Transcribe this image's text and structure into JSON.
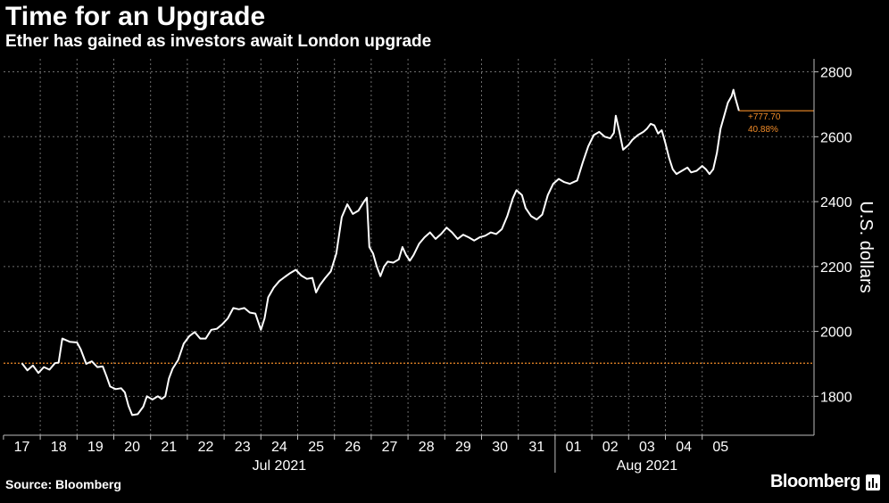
{
  "header": {
    "title": "Time for an Upgrade",
    "subtitle": "Ether has gained as investors await London upgrade"
  },
  "footer": {
    "source": "Source: Bloomberg",
    "brand": "Bloomberg",
    "brand_icon": "bar-chart-icon"
  },
  "chart_data": {
    "type": "line",
    "ylabel": "U.S. dollars",
    "ylim": [
      1680,
      2840
    ],
    "yticks": [
      1800,
      2000,
      2200,
      2400,
      2600,
      2800
    ],
    "x_days": [
      "17",
      "18",
      "19",
      "20",
      "21",
      "22",
      "23",
      "24",
      "25",
      "26",
      "27",
      "28",
      "29",
      "30",
      "31",
      "01",
      "02",
      "03",
      "04",
      "05"
    ],
    "month_labels": [
      {
        "label": "Jul 2021",
        "center_day": "24"
      },
      {
        "label": "Aug 2021",
        "center_day": "03"
      }
    ],
    "reference_level": 1902,
    "reference_color": "#f28c28",
    "line_color": "#ffffff",
    "annotation": {
      "change": "+777.70",
      "percent": "40.88%",
      "last_value": 2680
    },
    "series": [
      {
        "values": [
          [
            0.0,
            1902
          ],
          [
            0.15,
            1880
          ],
          [
            0.3,
            1895
          ],
          [
            0.45,
            1872
          ],
          [
            0.6,
            1890
          ],
          [
            0.75,
            1882
          ],
          [
            0.9,
            1902
          ],
          [
            1.0,
            1904
          ],
          [
            1.1,
            1978
          ],
          [
            1.3,
            1968
          ],
          [
            1.5,
            1966
          ],
          [
            1.6,
            1945
          ],
          [
            1.75,
            1900
          ],
          [
            1.9,
            1908
          ],
          [
            2.05,
            1890
          ],
          [
            2.2,
            1892
          ],
          [
            2.3,
            1862
          ],
          [
            2.4,
            1830
          ],
          [
            2.55,
            1822
          ],
          [
            2.7,
            1825
          ],
          [
            2.8,
            1812
          ],
          [
            2.9,
            1770
          ],
          [
            3.0,
            1742
          ],
          [
            3.15,
            1745
          ],
          [
            3.3,
            1768
          ],
          [
            3.4,
            1800
          ],
          [
            3.55,
            1790
          ],
          [
            3.7,
            1800
          ],
          [
            3.8,
            1792
          ],
          [
            3.9,
            1800
          ],
          [
            4.0,
            1855
          ],
          [
            4.1,
            1885
          ],
          [
            4.25,
            1912
          ],
          [
            4.4,
            1962
          ],
          [
            4.55,
            1985
          ],
          [
            4.7,
            1998
          ],
          [
            4.85,
            1978
          ],
          [
            5.0,
            1978
          ],
          [
            5.15,
            2005
          ],
          [
            5.3,
            2008
          ],
          [
            5.45,
            2022
          ],
          [
            5.6,
            2040
          ],
          [
            5.75,
            2072
          ],
          [
            5.9,
            2068
          ],
          [
            6.05,
            2072
          ],
          [
            6.2,
            2058
          ],
          [
            6.35,
            2055
          ],
          [
            6.5,
            2005
          ],
          [
            6.6,
            2040
          ],
          [
            6.7,
            2105
          ],
          [
            6.85,
            2135
          ],
          [
            7.0,
            2155
          ],
          [
            7.15,
            2168
          ],
          [
            7.3,
            2180
          ],
          [
            7.45,
            2190
          ],
          [
            7.6,
            2172
          ],
          [
            7.75,
            2162
          ],
          [
            7.9,
            2165
          ],
          [
            8.0,
            2120
          ],
          [
            8.1,
            2142
          ],
          [
            8.25,
            2165
          ],
          [
            8.4,
            2185
          ],
          [
            8.55,
            2240
          ],
          [
            8.7,
            2352
          ],
          [
            8.85,
            2392
          ],
          [
            9.0,
            2362
          ],
          [
            9.15,
            2372
          ],
          [
            9.3,
            2400
          ],
          [
            9.38,
            2412
          ],
          [
            9.45,
            2260
          ],
          [
            9.55,
            2240
          ],
          [
            9.65,
            2200
          ],
          [
            9.75,
            2170
          ],
          [
            9.85,
            2200
          ],
          [
            9.95,
            2215
          ],
          [
            10.1,
            2212
          ],
          [
            10.25,
            2222
          ],
          [
            10.35,
            2260
          ],
          [
            10.45,
            2235
          ],
          [
            10.55,
            2218
          ],
          [
            10.65,
            2235
          ],
          [
            10.8,
            2270
          ],
          [
            10.95,
            2290
          ],
          [
            11.1,
            2305
          ],
          [
            11.25,
            2285
          ],
          [
            11.4,
            2300
          ],
          [
            11.55,
            2320
          ],
          [
            11.7,
            2305
          ],
          [
            11.85,
            2285
          ],
          [
            12.0,
            2298
          ],
          [
            12.15,
            2290
          ],
          [
            12.3,
            2280
          ],
          [
            12.45,
            2290
          ],
          [
            12.6,
            2295
          ],
          [
            12.75,
            2305
          ],
          [
            12.9,
            2300
          ],
          [
            13.05,
            2315
          ],
          [
            13.2,
            2355
          ],
          [
            13.35,
            2410
          ],
          [
            13.45,
            2435
          ],
          [
            13.6,
            2420
          ],
          [
            13.7,
            2380
          ],
          [
            13.85,
            2355
          ],
          [
            14.0,
            2345
          ],
          [
            14.15,
            2360
          ],
          [
            14.3,
            2420
          ],
          [
            14.45,
            2455
          ],
          [
            14.6,
            2470
          ],
          [
            14.75,
            2460
          ],
          [
            14.9,
            2455
          ],
          [
            15.0,
            2460
          ],
          [
            15.1,
            2465
          ],
          [
            15.25,
            2520
          ],
          [
            15.4,
            2570
          ],
          [
            15.55,
            2605
          ],
          [
            15.7,
            2615
          ],
          [
            15.85,
            2600
          ],
          [
            16.0,
            2595
          ],
          [
            16.1,
            2612
          ],
          [
            16.15,
            2665
          ],
          [
            16.25,
            2615
          ],
          [
            16.35,
            2560
          ],
          [
            16.5,
            2575
          ],
          [
            16.6,
            2590
          ],
          [
            16.75,
            2605
          ],
          [
            16.9,
            2615
          ],
          [
            17.0,
            2625
          ],
          [
            17.1,
            2640
          ],
          [
            17.2,
            2635
          ],
          [
            17.3,
            2610
          ],
          [
            17.4,
            2620
          ],
          [
            17.5,
            2580
          ],
          [
            17.6,
            2535
          ],
          [
            17.7,
            2500
          ],
          [
            17.8,
            2485
          ],
          [
            17.95,
            2495
          ],
          [
            18.1,
            2505
          ],
          [
            18.2,
            2490
          ],
          [
            18.35,
            2495
          ],
          [
            18.5,
            2510
          ],
          [
            18.6,
            2500
          ],
          [
            18.7,
            2485
          ],
          [
            18.8,
            2500
          ],
          [
            18.9,
            2550
          ],
          [
            19.0,
            2625
          ],
          [
            19.1,
            2665
          ],
          [
            19.2,
            2705
          ],
          [
            19.3,
            2725
          ],
          [
            19.35,
            2745
          ],
          [
            19.4,
            2720
          ],
          [
            19.5,
            2680
          ]
        ]
      }
    ]
  }
}
